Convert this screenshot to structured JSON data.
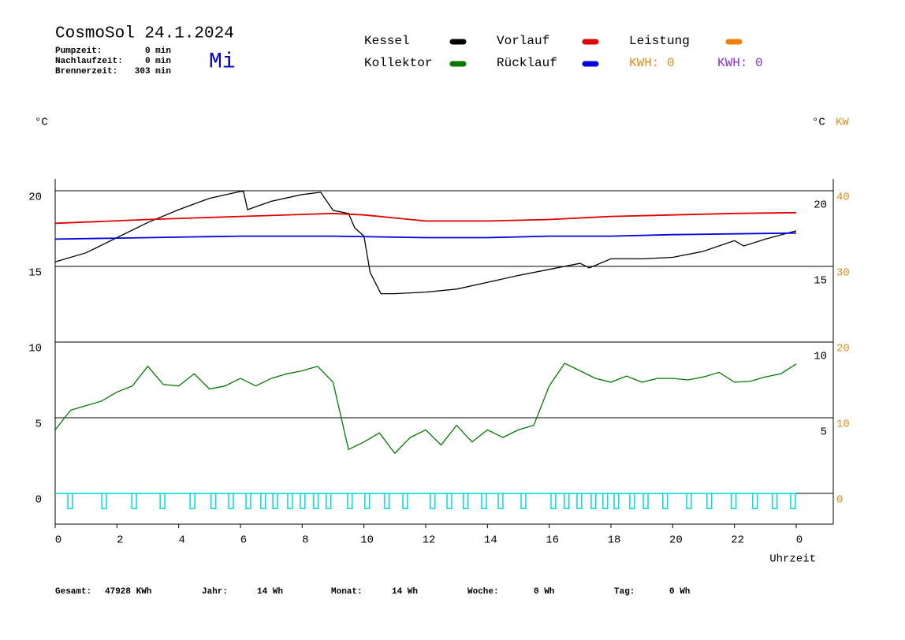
{
  "chart_data": {
    "type": "line",
    "title": "CosmoSol 24.1.2024",
    "weekday": "Mi",
    "info": [
      [
        "Pumpzeit:",
        "0 min"
      ],
      [
        "Nachlaufzeit:",
        "0 min"
      ],
      [
        "Brennerzeit:",
        "303 min"
      ]
    ],
    "y_unit": "°C",
    "y2_unit_c": "°C",
    "y2_unit": "KW",
    "xlabel": "Uhrzeit",
    "kwh": [
      {
        "text": "KWH: 0",
        "color": "#e08a1e"
      },
      {
        "text": "KWH: 0",
        "color": "#8a2be2"
      }
    ],
    "footer": [
      [
        "Gesamt:",
        "47928 KWh"
      ],
      [
        "Jahr:",
        "14 Wh"
      ],
      [
        "Monat:",
        "14 Wh"
      ],
      [
        "Woche:",
        "0 Wh"
      ],
      [
        "Tag:",
        "0 Wh"
      ]
    ],
    "xlim": [
      0,
      25.2
    ],
    "xticks": [
      0,
      2,
      4,
      6,
      8,
      10,
      12,
      14,
      16,
      18,
      20,
      22,
      {
        "value": 24,
        "label": "0"
      }
    ],
    "ylim": [
      -2.03,
      20.78
    ],
    "yticks": [
      0,
      5,
      10,
      15,
      20
    ],
    "y3ticks": [
      5,
      10,
      15,
      20
    ],
    "y2lim": [
      -4.06,
      41.56
    ],
    "y2ticks": [
      0,
      10,
      20,
      30,
      40
    ],
    "grid": true,
    "series": [
      {
        "name": "Kessel",
        "color": "#000000",
        "x": [
          0,
          1,
          2,
          3,
          4,
          5,
          6,
          6.1,
          6.23,
          7,
          8,
          8.6,
          9,
          9.5,
          9.7,
          10,
          10.2,
          10.55,
          11,
          12,
          13,
          14,
          15,
          16,
          17,
          17.3,
          18,
          19,
          20,
          21,
          22,
          22.3,
          23,
          24
        ],
        "values": [
          15.3,
          15.9,
          16.9,
          17.9,
          18.75,
          19.5,
          19.95,
          19.95,
          18.75,
          19.3,
          19.75,
          19.9,
          18.7,
          18.5,
          17.55,
          17.0,
          14.6,
          13.2,
          13.2,
          13.3,
          13.5,
          13.95,
          14.4,
          14.8,
          15.2,
          14.9,
          15.5,
          15.5,
          15.6,
          16.0,
          16.7,
          16.35,
          16.8,
          17.35
        ]
      },
      {
        "name": "Kollektor",
        "color": "#007a00",
        "x": [
          0,
          0.5,
          1,
          1.5,
          2,
          2.5,
          3,
          3.5,
          4,
          4.5,
          5,
          5.5,
          6,
          6.5,
          7,
          7.5,
          8,
          8.5,
          9,
          9.5,
          10,
          10.5,
          11,
          11.5,
          12,
          12.5,
          13,
          13.5,
          14,
          14.5,
          15,
          15.5,
          16,
          16.5,
          17,
          17.5,
          18,
          18.5,
          19,
          19.5,
          20,
          20.5,
          21,
          21.5,
          22,
          22.5,
          23,
          23.5,
          24
        ],
        "values": [
          4.2,
          5.5,
          5.8,
          6.1,
          6.7,
          7.1,
          8.4,
          7.2,
          7.1,
          7.9,
          6.9,
          7.1,
          7.6,
          7.1,
          7.6,
          7.9,
          8.1,
          8.4,
          7.35,
          2.9,
          3.4,
          4.0,
          2.65,
          3.7,
          4.2,
          3.2,
          4.5,
          3.4,
          4.2,
          3.7,
          4.2,
          4.5,
          7.1,
          8.6,
          8.1,
          7.6,
          7.35,
          7.75,
          7.35,
          7.6,
          7.6,
          7.5,
          7.7,
          8.0,
          7.35,
          7.4,
          7.7,
          7.9,
          8.55
        ]
      },
      {
        "name": "Vorlauf",
        "color": "#e00000",
        "x": [
          0,
          3,
          6,
          9,
          10,
          12,
          14,
          16,
          18,
          20,
          22,
          24
        ],
        "values": [
          17.85,
          18.1,
          18.3,
          18.5,
          18.4,
          18.0,
          18.0,
          18.1,
          18.3,
          18.4,
          18.5,
          18.55
        ]
      },
      {
        "name": "Rücklauf",
        "color": "#0000e0",
        "x": [
          0,
          3,
          6,
          9,
          12,
          14,
          16,
          18,
          20,
          22,
          24
        ],
        "values": [
          16.8,
          16.9,
          17.0,
          17.0,
          16.9,
          16.9,
          17.0,
          17.0,
          17.1,
          17.15,
          17.2
        ]
      },
      {
        "name": "Leistung",
        "color": "#f08000",
        "x": [],
        "values": []
      }
    ],
    "pump": {
      "color": "#00dcdc",
      "low": -1,
      "width": 0.15,
      "starts": [
        0.41,
        1.51,
        2.48,
        3.4,
        4.37,
        5.05,
        5.62,
        6.18,
        6.66,
        7.05,
        7.53,
        7.94,
        8.37,
        8.78,
        9.47,
        10.03,
        10.67,
        11.26,
        12.15,
        12.69,
        13.22,
        13.81,
        14.35,
        15.09,
        16.06,
        16.49,
        16.9,
        17.36,
        17.74,
        18.1,
        18.61,
        19.05,
        19.68,
        20.45,
        21.11,
        21.9,
        22.59,
        23.23,
        23.82
      ]
    }
  }
}
